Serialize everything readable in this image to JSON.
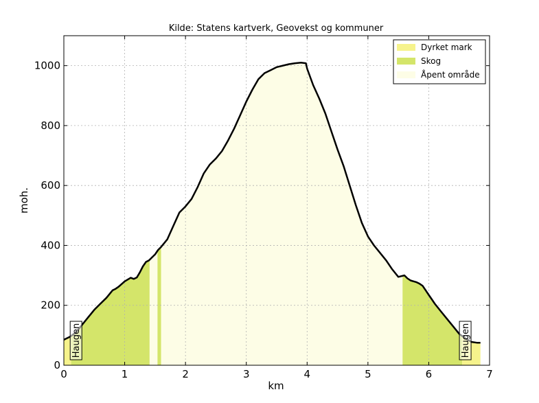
{
  "chart_data": {
    "type": "area",
    "title": "Kilde: Statens kartverk, Geovekst og kommuner",
    "xlabel": "km",
    "ylabel": "moh.",
    "xlim": [
      0,
      7
    ],
    "ylim": [
      0,
      1100
    ],
    "xticks": [
      "0",
      "1",
      "2",
      "3",
      "4",
      "5",
      "6",
      "7"
    ],
    "yticks": [
      "0",
      "200",
      "400",
      "600",
      "800",
      "1000"
    ],
    "grid": true,
    "legend_position": "top-right",
    "legend": [
      {
        "label": "Dyrket mark",
        "color": "#f6f38c"
      },
      {
        "label": "Skog",
        "color": "#d4e56a"
      },
      {
        "label": "Åpent område",
        "color": "#fdfde6"
      }
    ],
    "landcover": [
      {
        "class": "Dyrket mark",
        "x0": 0.0,
        "x1": 0.12
      },
      {
        "class": "Skog",
        "x0": 0.12,
        "x1": 1.41
      },
      {
        "class": "Åpent område",
        "x0": 1.41,
        "x1": 1.54
      },
      {
        "class": "Skog",
        "x0": 1.54,
        "x1": 1.6
      },
      {
        "class": "Åpent område",
        "x0": 1.6,
        "x1": 5.57
      },
      {
        "class": "Skog",
        "x0": 5.57,
        "x1": 6.55
      },
      {
        "class": "Dyrket mark",
        "x0": 6.55,
        "x1": 6.85
      }
    ],
    "profile": {
      "x": [
        0.0,
        0.1,
        0.2,
        0.3,
        0.4,
        0.5,
        0.6,
        0.7,
        0.8,
        0.85,
        0.9,
        1.0,
        1.1,
        1.15,
        1.2,
        1.25,
        1.3,
        1.35,
        1.4,
        1.45,
        1.5,
        1.55,
        1.6,
        1.7,
        1.8,
        1.9,
        2.0,
        2.1,
        2.2,
        2.3,
        2.4,
        2.5,
        2.6,
        2.7,
        2.8,
        2.9,
        3.0,
        3.1,
        3.2,
        3.3,
        3.4,
        3.5,
        3.6,
        3.7,
        3.8,
        3.9,
        3.98,
        4.0,
        4.1,
        4.2,
        4.3,
        4.4,
        4.5,
        4.6,
        4.7,
        4.8,
        4.9,
        5.0,
        5.1,
        5.2,
        5.3,
        5.4,
        5.5,
        5.6,
        5.65,
        5.7,
        5.75,
        5.8,
        5.85,
        5.9,
        5.95,
        6.0,
        6.05,
        6.1,
        6.2,
        6.3,
        6.4,
        6.5,
        6.6,
        6.7,
        6.8,
        6.85
      ],
      "y": [
        85,
        95,
        110,
        135,
        160,
        185,
        205,
        225,
        250,
        255,
        262,
        280,
        292,
        288,
        293,
        310,
        330,
        345,
        350,
        360,
        370,
        385,
        395,
        420,
        465,
        510,
        530,
        555,
        595,
        640,
        670,
        690,
        715,
        750,
        790,
        835,
        880,
        920,
        955,
        975,
        985,
        995,
        1000,
        1005,
        1008,
        1010,
        1008,
        990,
        935,
        890,
        840,
        780,
        720,
        665,
        600,
        535,
        475,
        430,
        400,
        375,
        350,
        320,
        295,
        300,
        290,
        283,
        280,
        277,
        272,
        265,
        250,
        235,
        220,
        205,
        180,
        155,
        130,
        105,
        90,
        78,
        75,
        75
      ]
    },
    "annotations": [
      {
        "text": "Haugen",
        "x": 0.2
      },
      {
        "text": "Haugen",
        "x": 6.6
      }
    ]
  }
}
